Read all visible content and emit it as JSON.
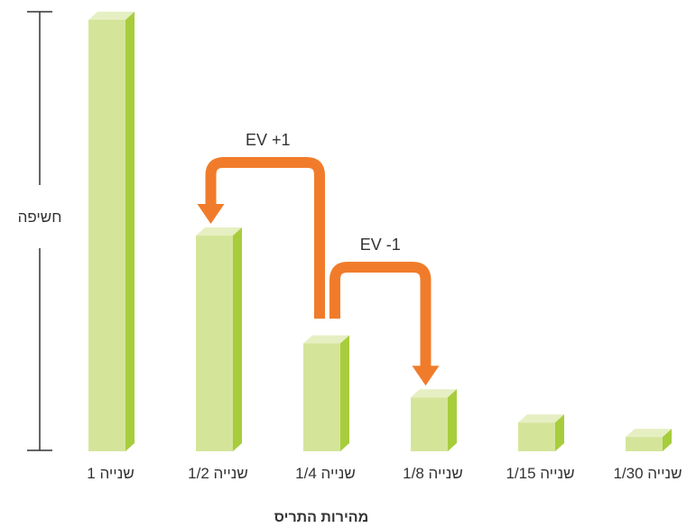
{
  "chart_data": {
    "type": "bar",
    "title": "",
    "xlabel": "מהירות התריס",
    "ylabel": "חשיפה",
    "categories": [
      "1 שנייה",
      "1/2 שנייה",
      "1/4 שנייה",
      "1/8 שנייה",
      "1/15 שנייה",
      "1/30 שנייה"
    ],
    "values": [
      1,
      0.5,
      0.25,
      0.125,
      0.0667,
      0.0333
    ],
    "ylim": [
      0,
      1
    ],
    "grid": false,
    "legend": "none",
    "colors": {
      "front": "#d4e59a",
      "top": "#e6efc2",
      "side": "#a7cd3c",
      "arrow": "#f07c2b",
      "axis": "#333333"
    },
    "annotations": [
      {
        "label": "EV +1",
        "from_category": "1/4 שנייה",
        "to_category": "1/2 שנייה"
      },
      {
        "label": "EV -1",
        "from_category": "1/4 שנייה",
        "to_category": "1/8 שנייה"
      }
    ]
  }
}
